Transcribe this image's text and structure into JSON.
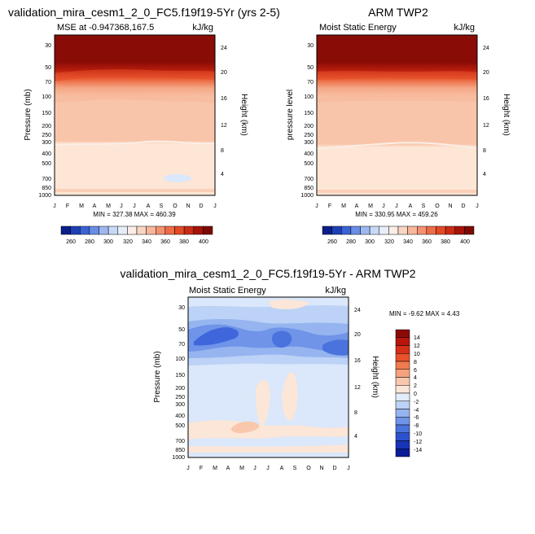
{
  "chart_data": [
    {
      "type": "heatmap",
      "title": "validation_mira_cesm1_2_0_FC5.f19f19-5Yr (yrs 2-5)",
      "subtitle_left": "MSE at -0.947368,167.5",
      "units": "kJ/kg",
      "xlabel": "",
      "ylabel": "Pressure (mb)",
      "ylabel_right": "Height (km)",
      "x_ticks": [
        "J",
        "F",
        "M",
        "A",
        "M",
        "J",
        "J",
        "A",
        "S",
        "O",
        "N",
        "D",
        "J"
      ],
      "y_ticks": [
        "30",
        "50",
        "70",
        "100",
        "150",
        "200",
        "250",
        "300",
        "400",
        "500",
        "700",
        "850",
        "1000"
      ],
      "y_right_ticks": [
        "24",
        "20",
        "16",
        "12",
        "8",
        "4"
      ],
      "ylim": [
        1000,
        20
      ],
      "min_max_text": "MIN = 327.38 MAX = 460.39",
      "colorbar": {
        "labels": [
          "260",
          "280",
          "300",
          "320",
          "340",
          "360",
          "380",
          "400"
        ],
        "colors": [
          "#0b1f8a",
          "#1f3fb5",
          "#3a63d6",
          "#6a8ee6",
          "#9db7f0",
          "#c8d9f7",
          "#e6eef9",
          "#fbeee6",
          "#f9d6c2",
          "#f6b79a",
          "#f39171",
          "#ee6c47",
          "#e34a26",
          "#c92c16",
          "#a51309",
          "#7d0a05"
        ]
      },
      "field_description_values": {
        "top_band_value": 410,
        "upper_gradient_value": 380,
        "mid_value": 345,
        "lower_value": 333
      }
    },
    {
      "type": "heatmap",
      "title": "ARM TWP2",
      "subtitle_left": "Moist Static Energy",
      "units": "kJ/kg",
      "ylabel": "pressure level",
      "ylabel_right": "Height (km)",
      "x_ticks": [
        "J",
        "F",
        "M",
        "A",
        "M",
        "J",
        "J",
        "A",
        "S",
        "O",
        "N",
        "D",
        "J"
      ],
      "y_ticks": [
        "30",
        "50",
        "70",
        "100",
        "150",
        "200",
        "250",
        "300",
        "400",
        "500",
        "700",
        "850",
        "1000"
      ],
      "y_right_ticks": [
        "24",
        "20",
        "16",
        "12",
        "8",
        "4"
      ],
      "ylim": [
        1000,
        20
      ],
      "min_max_text": "MIN = 330.95 MAX = 459.26",
      "colorbar": {
        "labels": [
          "260",
          "280",
          "300",
          "320",
          "340",
          "360",
          "380",
          "400"
        ],
        "colors": [
          "#0b1f8a",
          "#1f3fb5",
          "#3a63d6",
          "#6a8ee6",
          "#9db7f0",
          "#c8d9f7",
          "#e6eef9",
          "#fbeee6",
          "#f9d6c2",
          "#f6b79a",
          "#f39171",
          "#ee6c47",
          "#e34a26",
          "#c92c16",
          "#a51309",
          "#7d0a05"
        ]
      }
    },
    {
      "type": "heatmap",
      "title": "validation_mira_cesm1_2_0_FC5.f19f19-5Yr - ARM TWP2",
      "subtitle_left": "Moist Static Energy",
      "units": "kJ/kg",
      "ylabel": "Pressure (mb)",
      "ylabel_right": "Height (km)",
      "x_ticks": [
        "J",
        "F",
        "M",
        "A",
        "M",
        "J",
        "J",
        "A",
        "S",
        "O",
        "N",
        "D",
        "J"
      ],
      "y_ticks": [
        "30",
        "50",
        "70",
        "100",
        "150",
        "200",
        "250",
        "300",
        "400",
        "500",
        "700",
        "850",
        "1000"
      ],
      "y_right_ticks": [
        "24",
        "20",
        "16",
        "12",
        "8",
        "4"
      ],
      "ylim": [
        1000,
        20
      ],
      "min_max_text": "MIN = -9.62 MAX =  4.43",
      "colorbar": {
        "labels": [
          "14",
          "12",
          "10",
          "8",
          "6",
          "4",
          "2",
          "0",
          "-2",
          "-4",
          "-6",
          "-8",
          "-10",
          "-12",
          "-14"
        ],
        "colors": [
          "#8b0a07",
          "#b8150c",
          "#d62f18",
          "#e9512b",
          "#f17a4f",
          "#f6a27c",
          "#f9c7ab",
          "#fbe6d8",
          "#e2ecfb",
          "#bcd2f6",
          "#96b4ef",
          "#6f94e8",
          "#4b73dd",
          "#2d52cf",
          "#1833b6",
          "#0c1b96"
        ]
      }
    }
  ]
}
